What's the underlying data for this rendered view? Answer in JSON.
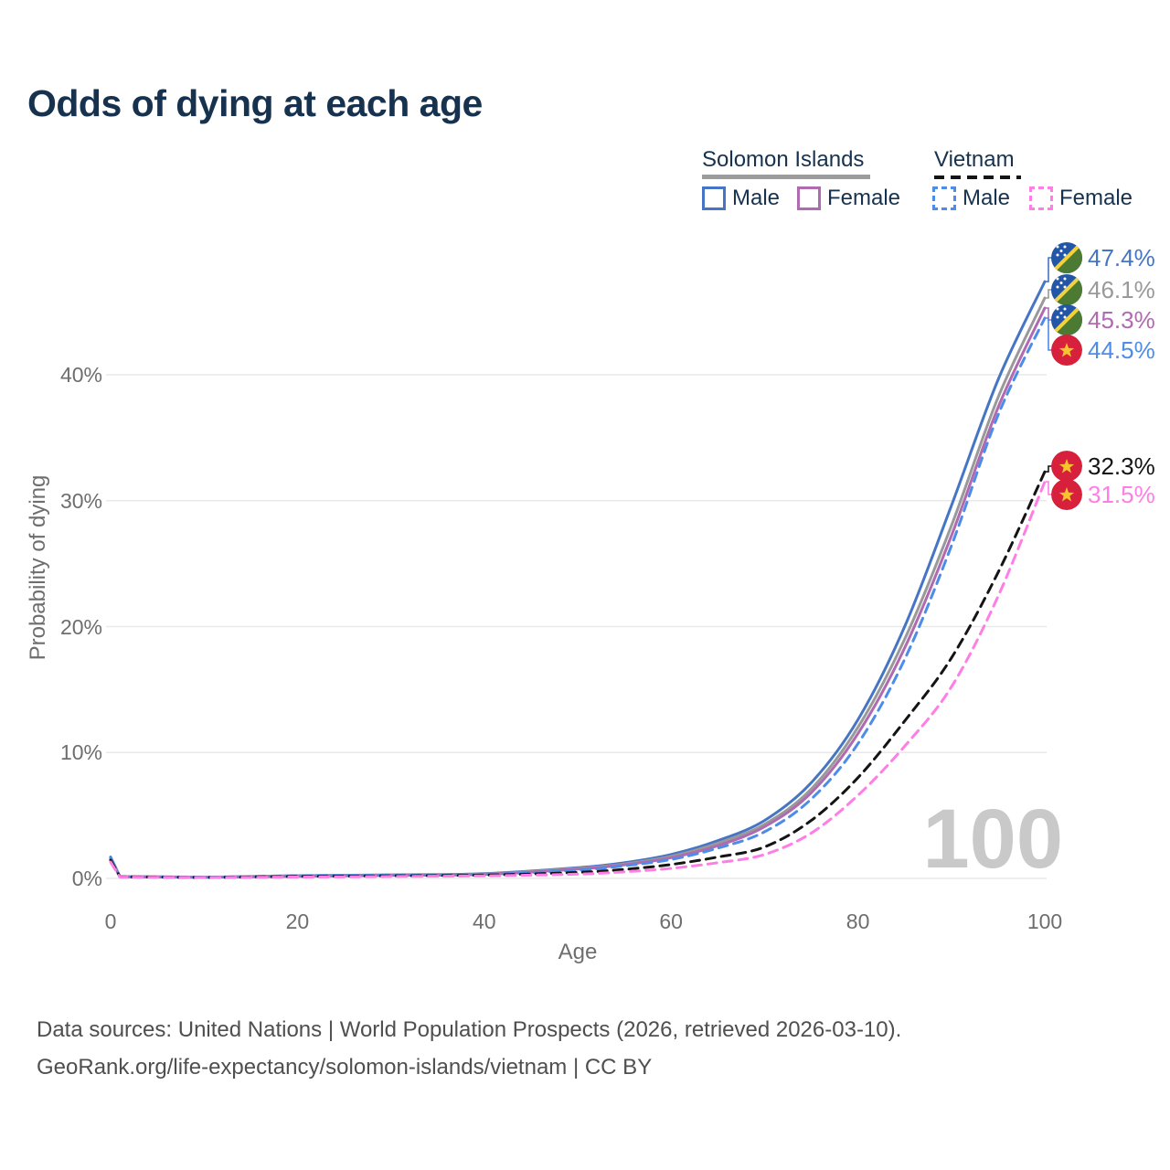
{
  "title": "Odds of dying at each age",
  "watermark": "100",
  "legend": {
    "solomon_islands": {
      "name": "Solomon Islands",
      "male": "Male",
      "female": "Female"
    },
    "vietnam": {
      "name": "Vietnam",
      "male": "Male",
      "female": "Female"
    }
  },
  "axes": {
    "x_label": "Age",
    "y_label": "Probability of dying"
  },
  "footer": {
    "line1": "Data sources: United Nations | World Population Prospects (2026, retrieved 2026-03-10).",
    "line2": "GeoRank.org/life-expectancy/solomon-islands/vietnam | CC BY"
  },
  "end_labels": [
    {
      "country": "solomon-islands",
      "series": "Solomon Islands Male",
      "value": "47.4%",
      "color": "#4575c4"
    },
    {
      "country": "solomon-islands",
      "series": "Solomon Islands Combined",
      "value": "46.1%",
      "color": "#999999"
    },
    {
      "country": "solomon-islands",
      "series": "Solomon Islands Female",
      "value": "45.3%",
      "color": "#b06ab0"
    },
    {
      "country": "vietnam",
      "series": "Vietnam Male",
      "value": "44.5%",
      "color": "#4d8ce8"
    },
    {
      "country": "vietnam",
      "series": "Vietnam Combined",
      "value": "32.3%",
      "color": "#141414"
    },
    {
      "country": "vietnam",
      "series": "Vietnam Female",
      "value": "31.5%",
      "color": "#ff7ee6"
    }
  ],
  "chart_data": {
    "type": "line",
    "title": "Odds of dying at each age",
    "xlabel": "Age",
    "ylabel": "Probability of dying",
    "units": "percent",
    "xlim": [
      0,
      100
    ],
    "ylim": [
      0,
      48
    ],
    "x_ticks": [
      0,
      20,
      40,
      60,
      80,
      100
    ],
    "x_tick_labels": [
      "0",
      "20",
      "40",
      "60",
      "80",
      "100"
    ],
    "y_ticks": [
      0,
      10,
      20,
      30,
      40
    ],
    "y_tick_labels": [
      "0%",
      "10%",
      "20%",
      "30%",
      "40%"
    ],
    "grid": "horizontal",
    "legend_position": "top-right",
    "x": [
      0,
      1,
      10,
      20,
      30,
      40,
      50,
      55,
      60,
      65,
      70,
      75,
      80,
      85,
      90,
      95,
      100
    ],
    "series": [
      {
        "name": "Solomon Islands Male",
        "country": "Solomon Islands",
        "style": "solid",
        "color": "#4575c4",
        "values": [
          1.7,
          0.15,
          0.1,
          0.22,
          0.28,
          0.38,
          0.85,
          1.25,
          1.9,
          3.0,
          4.6,
          7.6,
          12.6,
          20.0,
          29.6,
          39.6,
          47.4
        ],
        "end_value_pct": 47.4
      },
      {
        "name": "Solomon Islands Combined",
        "country": "Solomon Islands",
        "style": "solid",
        "color": "#999999",
        "values": [
          1.6,
          0.14,
          0.09,
          0.2,
          0.26,
          0.35,
          0.8,
          1.15,
          1.75,
          2.8,
          4.3,
          7.1,
          12.0,
          19.0,
          28.0,
          38.2,
          46.1
        ],
        "end_value_pct": 46.1
      },
      {
        "name": "Solomon Islands Female",
        "country": "Solomon Islands",
        "style": "solid",
        "color": "#b06ab0",
        "values": [
          1.5,
          0.13,
          0.09,
          0.17,
          0.24,
          0.32,
          0.74,
          1.08,
          1.65,
          2.6,
          4.1,
          6.8,
          11.5,
          18.3,
          27.2,
          37.4,
          45.3
        ],
        "end_value_pct": 45.3
      },
      {
        "name": "Vietnam Male",
        "country": "Vietnam",
        "style": "dashed",
        "color": "#4d8ce8",
        "values": [
          1.6,
          0.14,
          0.09,
          0.2,
          0.26,
          0.32,
          0.65,
          1.0,
          1.5,
          2.4,
          3.7,
          6.3,
          10.7,
          17.4,
          26.4,
          36.8,
          44.5
        ],
        "end_value_pct": 44.5
      },
      {
        "name": "Vietnam Combined",
        "country": "Vietnam",
        "style": "dashed",
        "color": "#141414",
        "values": [
          1.45,
          0.12,
          0.08,
          0.15,
          0.2,
          0.26,
          0.48,
          0.72,
          1.1,
          1.7,
          2.5,
          4.6,
          8.0,
          12.5,
          17.5,
          24.3,
          32.3
        ],
        "end_value_pct": 32.3
      },
      {
        "name": "Vietnam Female",
        "country": "Vietnam",
        "style": "dashed",
        "color": "#ff7ee6",
        "values": [
          1.3,
          0.1,
          0.07,
          0.11,
          0.15,
          0.2,
          0.34,
          0.52,
          0.8,
          1.25,
          1.9,
          3.6,
          6.6,
          10.5,
          15.2,
          22.4,
          31.5
        ],
        "end_value_pct": 31.5
      }
    ]
  }
}
